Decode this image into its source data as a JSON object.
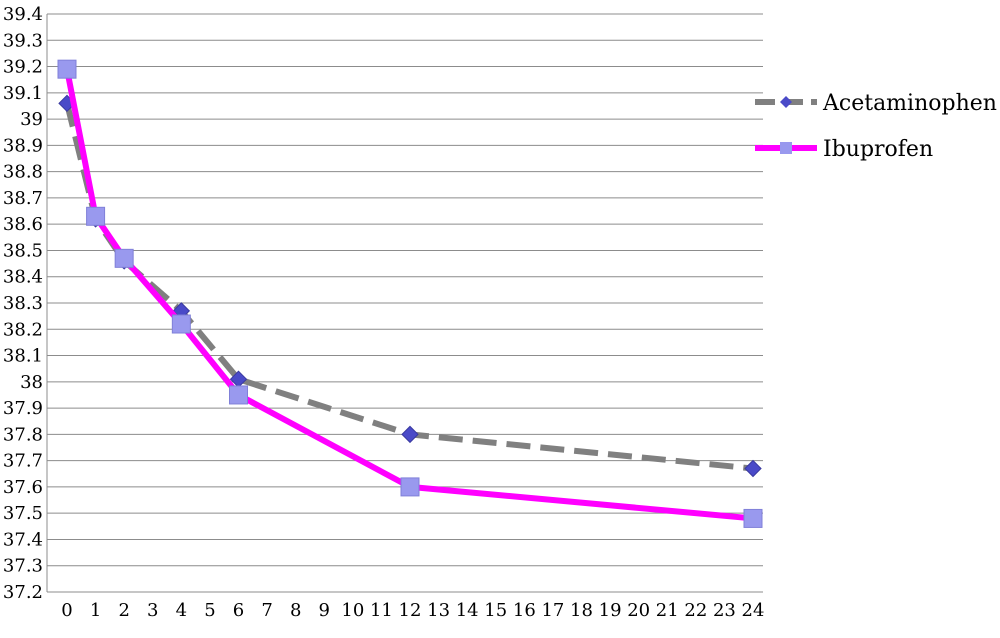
{
  "chart_data": {
    "type": "line",
    "title": "",
    "xlabel": "",
    "ylabel": "",
    "x_ticks": [
      "0",
      "1",
      "2",
      "3",
      "4",
      "5",
      "6",
      "7",
      "8",
      "9",
      "10",
      "11",
      "12",
      "13",
      "14",
      "15",
      "16",
      "17",
      "18",
      "19",
      "20",
      "21",
      "22",
      "23",
      "24"
    ],
    "y_ticks": [
      "37.2",
      "37.3",
      "37.4",
      "37.5",
      "37.6",
      "37.7",
      "37.8",
      "37.9",
      "38",
      "38.1",
      "38.2",
      "38.3",
      "38.4",
      "38.5",
      "38.6",
      "38.7",
      "38.8",
      "38.9",
      "39",
      "39.1",
      "39.2",
      "39.3",
      "39.4"
    ],
    "ylim": [
      37.2,
      39.4
    ],
    "xlim": [
      0,
      24
    ],
    "grid": "horizontal",
    "legend_position": "right",
    "series": [
      {
        "name": "Acetaminophen",
        "color": "#808080",
        "marker_color": "#4a4ac8",
        "marker": "diamond",
        "line_style": "dashed",
        "points": [
          {
            "x": 0,
            "y": 39.06
          },
          {
            "x": 1,
            "y": 38.62
          },
          {
            "x": 2,
            "y": 38.46
          },
          {
            "x": 4,
            "y": 38.27
          },
          {
            "x": 6,
            "y": 38.01
          },
          {
            "x": 12,
            "y": 37.8
          },
          {
            "x": 24,
            "y": 37.67
          }
        ]
      },
      {
        "name": "Ibuprofen",
        "color": "#ff00ff",
        "marker_color": "#9999ee",
        "marker": "square",
        "line_style": "solid",
        "points": [
          {
            "x": 0,
            "y": 39.19
          },
          {
            "x": 1,
            "y": 38.63
          },
          {
            "x": 2,
            "y": 38.47
          },
          {
            "x": 4,
            "y": 38.22
          },
          {
            "x": 6,
            "y": 37.95
          },
          {
            "x": 12,
            "y": 37.6
          },
          {
            "x": 24,
            "y": 37.48
          }
        ]
      }
    ]
  }
}
